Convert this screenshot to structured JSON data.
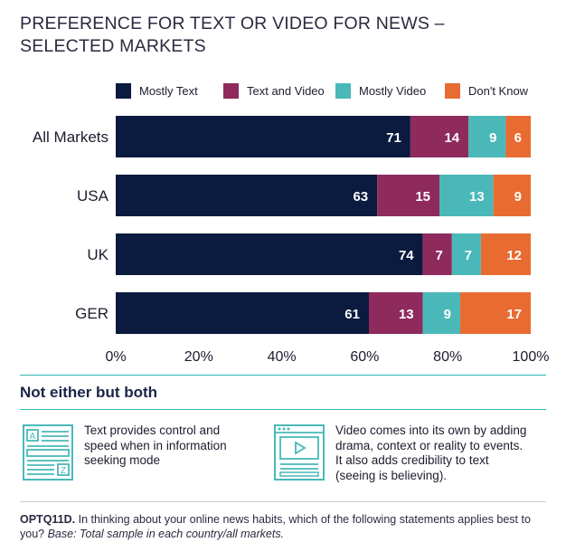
{
  "title_line1": "PREFERENCE FOR TEXT OR VIDEO FOR NEWS –",
  "title_line2": "SELECTED MARKETS",
  "legend": [
    {
      "label": "Mostly Text",
      "color": "#0b1a3f"
    },
    {
      "label": "Text and Video",
      "color": "#8e2a5c"
    },
    {
      "label": "Mostly Video",
      "color": "#4ab8b8"
    },
    {
      "label": "Don't Know",
      "color": "#e86b32"
    }
  ],
  "chart_data": {
    "type": "bar",
    "orientation": "horizontal",
    "stacked": true,
    "categories": [
      "All Markets",
      "USA",
      "UK",
      "GER"
    ],
    "series": [
      {
        "name": "Mostly Text",
        "values": [
          71,
          63,
          74,
          61
        ],
        "color": "#0b1a3f"
      },
      {
        "name": "Text and Video",
        "values": [
          14,
          15,
          7,
          13
        ],
        "color": "#8e2a5c"
      },
      {
        "name": "Mostly Video",
        "values": [
          9,
          13,
          7,
          9
        ],
        "color": "#4ab8b8"
      },
      {
        "name": "Don't Know",
        "values": [
          6,
          9,
          12,
          17
        ],
        "color": "#e86b32"
      }
    ],
    "xlim": [
      0,
      100
    ],
    "xticks": [
      "0%",
      "20%",
      "40%",
      "60%",
      "80%",
      "100%"
    ],
    "grid": false,
    "legend_position": "top"
  },
  "subheading": "Not either but both",
  "panels": [
    {
      "icon": "text-document-icon",
      "text": "Text provides control and\nspeed when in information\nseeking mode"
    },
    {
      "icon": "video-player-icon",
      "text": "Video comes into its own by adding\ndrama, context or reality to events.\nIt also adds credibility to text\n(seeing is believing)."
    }
  ],
  "footnote": {
    "code": "OPTQ11D.",
    "question": " In thinking about your online news habits, which of the following statements applies best to you? ",
    "base": "Base: Total sample in each country/all markets."
  }
}
